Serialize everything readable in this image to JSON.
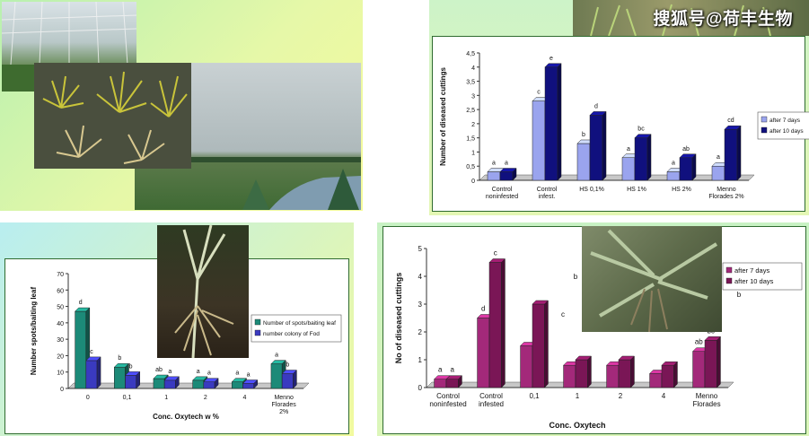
{
  "watermark": "搜狐号@荷丰生物",
  "colors": {
    "light_blue": "#9aa4ee",
    "dark_blue": "#10107e",
    "teal": "#1c8a78",
    "mid_blue": "#3a3ac0",
    "light_purple": "#a3297a",
    "dark_purple": "#7a1656",
    "panel_border": "#2f6b2f"
  },
  "chart_data": [
    {
      "id": "top-right",
      "type": "bar",
      "ylabel": "Number of diseased cuttings",
      "xlabel": "",
      "ylim": [
        0,
        4.5
      ],
      "yticks": [
        "0",
        "0,5",
        "1",
        "1,5",
        "2",
        "2,5",
        "3",
        "3,5",
        "4",
        "4,5"
      ],
      "categories": [
        [
          "Control",
          "noninfested"
        ],
        [
          "Control",
          "infest."
        ],
        [
          "HS 0,1%"
        ],
        [
          "HS 1%"
        ],
        [
          "HS 2%"
        ],
        [
          "Menno",
          "Florades 2%"
        ]
      ],
      "series": [
        {
          "name": "after 7 days",
          "values": [
            0.3,
            2.8,
            1.3,
            0.8,
            0.3,
            0.5
          ],
          "labels": [
            "a",
            "c",
            "b",
            "a",
            "a",
            "a"
          ]
        },
        {
          "name": "after 10 days",
          "values": [
            0.3,
            4.0,
            2.3,
            1.5,
            0.8,
            1.8
          ],
          "labels": [
            "a",
            "e",
            "d",
            "bc",
            "ab",
            "cd"
          ]
        }
      ],
      "legend_position": "right"
    },
    {
      "id": "bottom-left",
      "type": "bar",
      "ylabel": "Number spots/baiting leaf",
      "xlabel": "Conc. Oxytech w %",
      "ylim": [
        0,
        70
      ],
      "yticks": [
        "0",
        "10",
        "20",
        "30",
        "40",
        "50",
        "60",
        "70"
      ],
      "categories": [
        [
          "0"
        ],
        [
          "0,1"
        ],
        [
          "1"
        ],
        [
          "2"
        ],
        [
          "4"
        ],
        [
          "Menno",
          "Florades",
          "2%"
        ]
      ],
      "series": [
        {
          "name": "Number of spots/baiting leaf",
          "values": [
            47,
            13,
            6,
            5,
            4,
            15
          ],
          "labels": [
            "d",
            "b",
            "ab",
            "a",
            "a",
            "a"
          ]
        },
        {
          "name": "number colony of Fod",
          "values": [
            17,
            8,
            5,
            4,
            3,
            9
          ],
          "labels": [
            "c",
            "b",
            "a",
            "a",
            "a",
            "b"
          ]
        }
      ],
      "legend_position": "right"
    },
    {
      "id": "bottom-right",
      "type": "bar",
      "ylabel": "No of diseased cuttings",
      "xlabel": "Conc. Oxytech",
      "ylim": [
        0,
        5
      ],
      "yticks": [
        "0",
        "1",
        "2",
        "3",
        "4",
        "5"
      ],
      "categories": [
        [
          "Control",
          "noninfested"
        ],
        [
          "Control",
          "infested"
        ],
        [
          "0,1"
        ],
        [
          "1"
        ],
        [
          "2"
        ],
        [
          "4"
        ],
        [
          "Menno",
          "Florades"
        ]
      ],
      "series": [
        {
          "name": "after 7 days",
          "values": [
            0.3,
            2.5,
            1.5,
            0.8,
            0.8,
            0.5,
            1.3
          ],
          "labels": [
            "a",
            "d",
            "",
            "",
            "",
            "",
            "ab"
          ]
        },
        {
          "name": "after 10 days",
          "values": [
            0.3,
            4.5,
            3.0,
            1.0,
            1.0,
            0.8,
            1.7
          ],
          "labels": [
            "a",
            "c",
            "",
            "",
            "",
            "",
            "bc"
          ]
        }
      ],
      "extra_labels": [
        "b",
        "c",
        "b"
      ],
      "legend_position": "right"
    }
  ]
}
